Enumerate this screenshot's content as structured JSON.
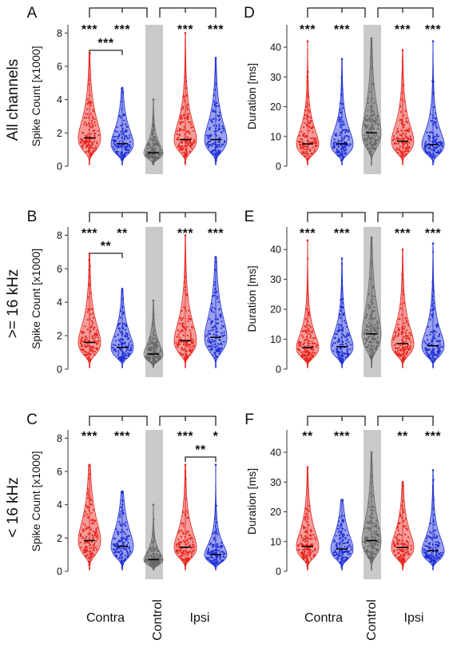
{
  "colors": {
    "contra_group": "#e8241d",
    "ipsi_group": "#1f2fd6",
    "control": "#666666",
    "control_band": "#c9c9c9"
  },
  "row_labels": [
    "All channels",
    ">= 16 kHz",
    "< 16 kHz"
  ],
  "x_group_labels": {
    "contra": "Contra",
    "control": "Control",
    "ipsi": "Ipsi"
  },
  "chart_data": [
    {
      "panel": "A",
      "type": "violin",
      "row": 0,
      "col": 0,
      "ylabel": "Spike Count [x1000]",
      "ylim": [
        0,
        8.4
      ],
      "yticks": [
        0,
        2,
        4,
        6,
        8
      ],
      "series": [
        {
          "group": "Contra",
          "color": "red",
          "median": 1.7,
          "max": 6.8
        },
        {
          "group": "Contra",
          "color": "blue",
          "median": 1.35,
          "max": 4.7
        },
        {
          "group": "Control",
          "color": "gray",
          "median": 0.8,
          "max": 4.0
        },
        {
          "group": "Ipsi",
          "color": "red",
          "median": 1.6,
          "max": 8.0
        },
        {
          "group": "Ipsi",
          "color": "blue",
          "median": 1.6,
          "max": 6.5
        }
      ],
      "top_stars": [
        "***",
        "***",
        "",
        "***",
        "***"
      ],
      "pair_annotation": {
        "from": 0,
        "to": 1,
        "label": "***"
      }
    },
    {
      "panel": "B",
      "type": "violin",
      "row": 1,
      "col": 0,
      "ylabel": "Spike Count [x1000]",
      "ylim": [
        0,
        8.4
      ],
      "yticks": [
        0,
        2,
        4,
        6,
        8
      ],
      "series": [
        {
          "group": "Contra",
          "color": "red",
          "median": 1.6,
          "max": 6.9
        },
        {
          "group": "Contra",
          "color": "blue",
          "median": 1.3,
          "max": 4.8
        },
        {
          "group": "Control",
          "color": "gray",
          "median": 0.9,
          "max": 4.1
        },
        {
          "group": "Ipsi",
          "color": "red",
          "median": 1.7,
          "max": 8.0
        },
        {
          "group": "Ipsi",
          "color": "blue",
          "median": 1.9,
          "max": 6.7
        }
      ],
      "top_stars": [
        "***",
        "**",
        "",
        "***",
        "***"
      ],
      "pair_annotation": {
        "from": 0,
        "to": 1,
        "label": "**"
      }
    },
    {
      "panel": "C",
      "type": "violin",
      "row": 2,
      "col": 0,
      "ylabel": "Spike Count [x1000]",
      "ylim": [
        0,
        8.4
      ],
      "yticks": [
        0,
        2,
        4,
        6,
        8
      ],
      "series": [
        {
          "group": "Contra",
          "color": "red",
          "median": 1.85,
          "max": 6.4
        },
        {
          "group": "Contra",
          "color": "blue",
          "median": 1.5,
          "max": 4.8
        },
        {
          "group": "Control",
          "color": "gray",
          "median": 0.7,
          "max": 4.0
        },
        {
          "group": "Ipsi",
          "color": "red",
          "median": 1.45,
          "max": 6.4
        },
        {
          "group": "Ipsi",
          "color": "blue",
          "median": 1.0,
          "max": 6.4
        }
      ],
      "top_stars": [
        "***",
        "***",
        "",
        "***",
        "*"
      ],
      "pair_annotation": {
        "from": 3,
        "to": 4,
        "label": "**"
      }
    },
    {
      "panel": "D",
      "type": "violin",
      "row": 0,
      "col": 1,
      "ylabel": "Duration [ms]",
      "ylim": [
        0,
        47
      ],
      "yticks": [
        0,
        10,
        20,
        30,
        40
      ],
      "series": [
        {
          "group": "Contra",
          "color": "red",
          "median": 7.5,
          "max": 42
        },
        {
          "group": "Contra",
          "color": "blue",
          "median": 7.5,
          "max": 36
        },
        {
          "group": "Control",
          "color": "gray",
          "median": 11.2,
          "max": 43
        },
        {
          "group": "Ipsi",
          "color": "red",
          "median": 8.4,
          "max": 39
        },
        {
          "group": "Ipsi",
          "color": "blue",
          "median": 7.3,
          "max": 42
        }
      ],
      "top_stars": [
        "***",
        "***",
        "",
        "***",
        "***"
      ]
    },
    {
      "panel": "E",
      "type": "violin",
      "row": 1,
      "col": 1,
      "ylabel": "Duration [ms]",
      "ylim": [
        0,
        47
      ],
      "yticks": [
        0,
        10,
        20,
        30,
        40
      ],
      "series": [
        {
          "group": "Contra",
          "color": "red",
          "median": 7.2,
          "max": 43
        },
        {
          "group": "Contra",
          "color": "blue",
          "median": 7.5,
          "max": 37
        },
        {
          "group": "Control",
          "color": "gray",
          "median": 11.8,
          "max": 44
        },
        {
          "group": "Ipsi",
          "color": "red",
          "median": 8.5,
          "max": 40
        },
        {
          "group": "Ipsi",
          "color": "blue",
          "median": 7.8,
          "max": 42
        }
      ],
      "top_stars": [
        "***",
        "***",
        "",
        "***",
        "***"
      ]
    },
    {
      "panel": "F",
      "type": "violin",
      "row": 2,
      "col": 1,
      "ylabel": "Duration [ms]",
      "ylim": [
        0,
        47
      ],
      "yticks": [
        0,
        10,
        20,
        30,
        40
      ],
      "series": [
        {
          "group": "Contra",
          "color": "red",
          "median": 8.3,
          "max": 35
        },
        {
          "group": "Contra",
          "color": "blue",
          "median": 7.5,
          "max": 24
        },
        {
          "group": "Control",
          "color": "gray",
          "median": 10.3,
          "max": 40
        },
        {
          "group": "Ipsi",
          "color": "red",
          "median": 8.0,
          "max": 30
        },
        {
          "group": "Ipsi",
          "color": "blue",
          "median": 6.9,
          "max": 34
        }
      ],
      "top_stars": [
        "**",
        "***",
        "",
        "**",
        "***"
      ]
    }
  ]
}
